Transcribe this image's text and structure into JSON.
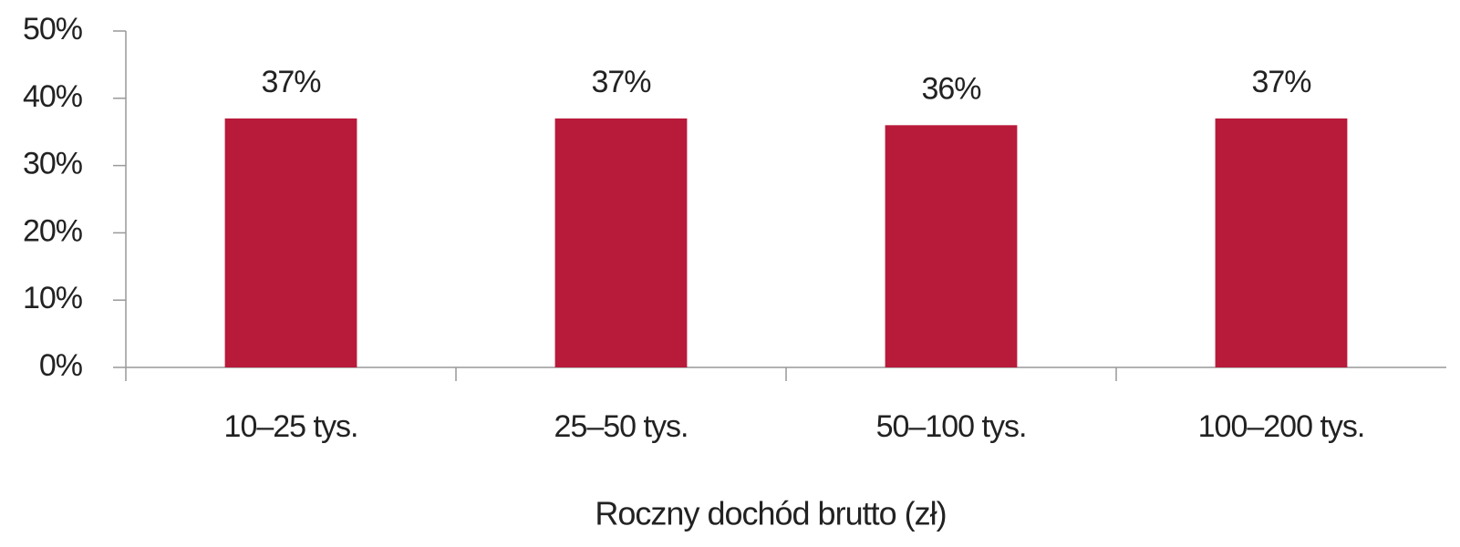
{
  "chart_data": {
    "type": "bar",
    "x_label": "Roczny dochód brutto (zł)",
    "categories": [
      "10–25 tys.",
      "25–50 tys.",
      "50–100 tys.",
      "100–200 tys."
    ],
    "values": [
      37,
      37,
      36,
      37
    ],
    "value_labels": [
      "37%",
      "37%",
      "36%",
      "37%"
    ],
    "color": "#b81a3a",
    "ylim": [
      0,
      50
    ],
    "yticks": [
      {
        "value": 0,
        "label": "0%"
      },
      {
        "value": 10,
        "label": "10%"
      },
      {
        "value": 20,
        "label": "20%"
      },
      {
        "value": 30,
        "label": "30%"
      },
      {
        "value": 40,
        "label": "40%"
      },
      {
        "value": 50,
        "label": "50%"
      }
    ],
    "grid": false
  }
}
